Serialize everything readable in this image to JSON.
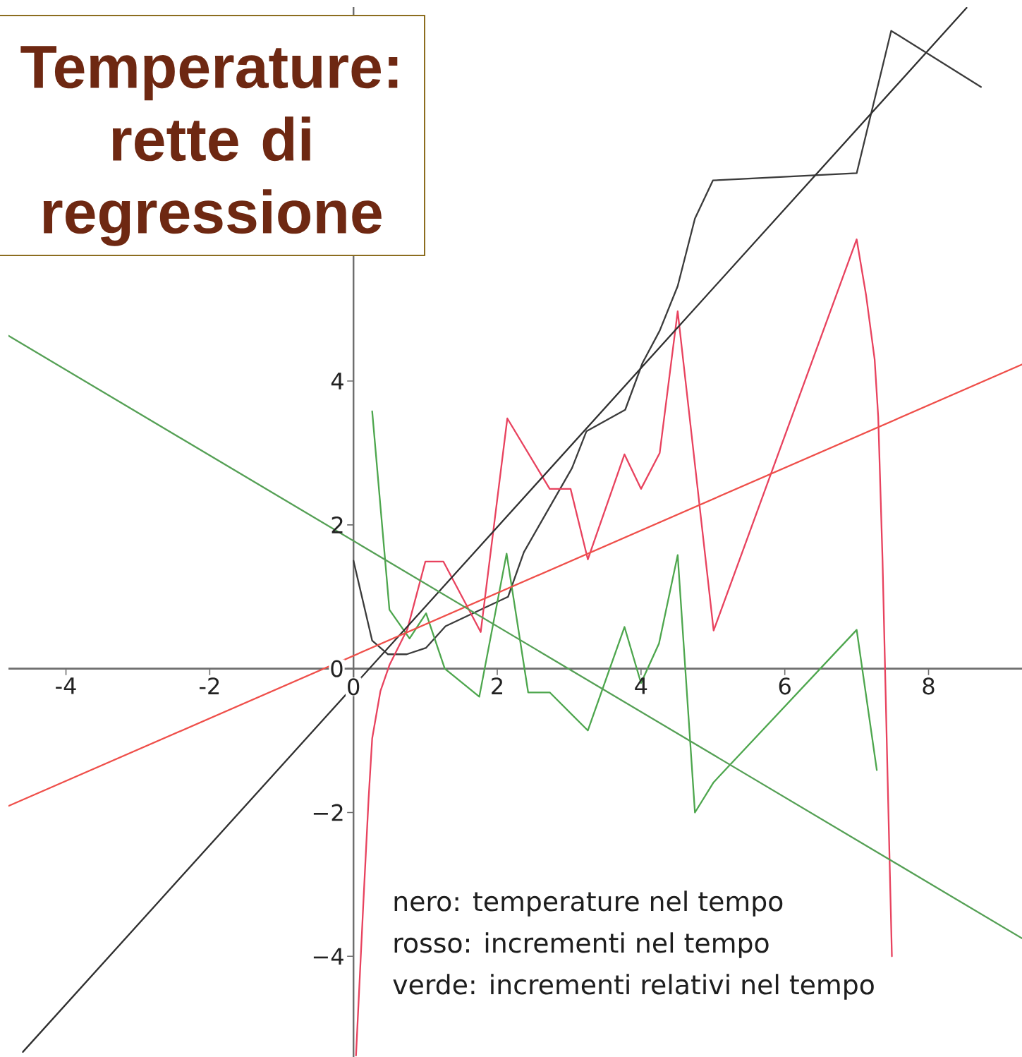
{
  "chart_data": {
    "type": "line",
    "title": "Temperature: rette di regressione",
    "annotations": [
      "nero: temperature nel tempo",
      "rosso: incrementi nel tempo",
      "verde: incrementi relativi nel tempo"
    ],
    "series": [
      {
        "color": "#3b3b3b",
        "x": [
          0,
          0.26,
          0.48,
          0.74,
          1.01,
          1.28,
          2.15,
          2.37,
          3.04,
          3.24,
          3.78,
          4.02,
          4.26,
          4.51,
          4.75,
          5.0,
          7.0,
          7.48,
          8.73
        ],
        "values": [
          1.5,
          0.39,
          0.2,
          0.2,
          0.29,
          0.59,
          1.0,
          1.62,
          2.79,
          3.3,
          3.6,
          4.25,
          4.7,
          5.32,
          6.26,
          6.79,
          6.89,
          8.87,
          8.09
        ]
      },
      {
        "color": "#e8425e",
        "x": [
          0.035,
          0.14,
          0.21,
          0.26,
          0.375,
          0.5,
          0.75,
          1.0,
          1.25,
          1.77,
          2.14,
          2.73,
          3.02,
          3.26,
          3.77,
          4.0,
          4.26,
          4.51,
          5.01,
          7.0,
          7.13,
          7.25,
          7.3,
          7.36,
          7.43,
          7.49
        ],
        "values": [
          -5.38,
          -3.2,
          -1.81,
          -0.97,
          -0.31,
          0.05,
          0.55,
          1.49,
          1.49,
          0.51,
          3.48,
          2.5,
          2.5,
          1.52,
          2.98,
          2.5,
          3.0,
          4.97,
          0.53,
          5.97,
          5.2,
          4.3,
          3.5,
          1.5,
          -1.5,
          -4.0
        ]
      },
      {
        "color": "#4da64d",
        "x": [
          0.26,
          0.5,
          0.78,
          1.01,
          1.27,
          1.75,
          2.13,
          2.43,
          2.73,
          3.26,
          3.77,
          4.0,
          4.25,
          4.51,
          4.75,
          5.01,
          7.0,
          7.28
        ],
        "values": [
          3.58,
          0.82,
          0.42,
          0.77,
          0.0,
          -0.39,
          1.6,
          -0.33,
          -0.33,
          -0.86,
          0.58,
          -0.2,
          0.35,
          1.58,
          -2.0,
          -1.58,
          0.54,
          -1.41
        ]
      },
      {
        "color": "#303030",
        "x": [
          -4.6,
          8.53
        ],
        "values": [
          -5.33,
          9.19
        ]
      },
      {
        "color": "#ef4f4a",
        "x": [
          -4.8,
          9.3
        ],
        "values": [
          -1.91,
          4.23
        ]
      },
      {
        "color": "#55a055",
        "x": [
          -4.8,
          9.3
        ],
        "values": [
          4.63,
          -3.75
        ]
      }
    ],
    "xlim": [
      -4.8,
      9.3
    ],
    "ylim": [
      -5.4,
      9.2
    ],
    "xticks": [
      -4,
      -2,
      0,
      2,
      4,
      6,
      8
    ],
    "yticks": [
      {
        "value": -4,
        "label": "−4"
      },
      {
        "value": -2,
        "label": "−2"
      },
      0,
      2,
      4
    ]
  }
}
